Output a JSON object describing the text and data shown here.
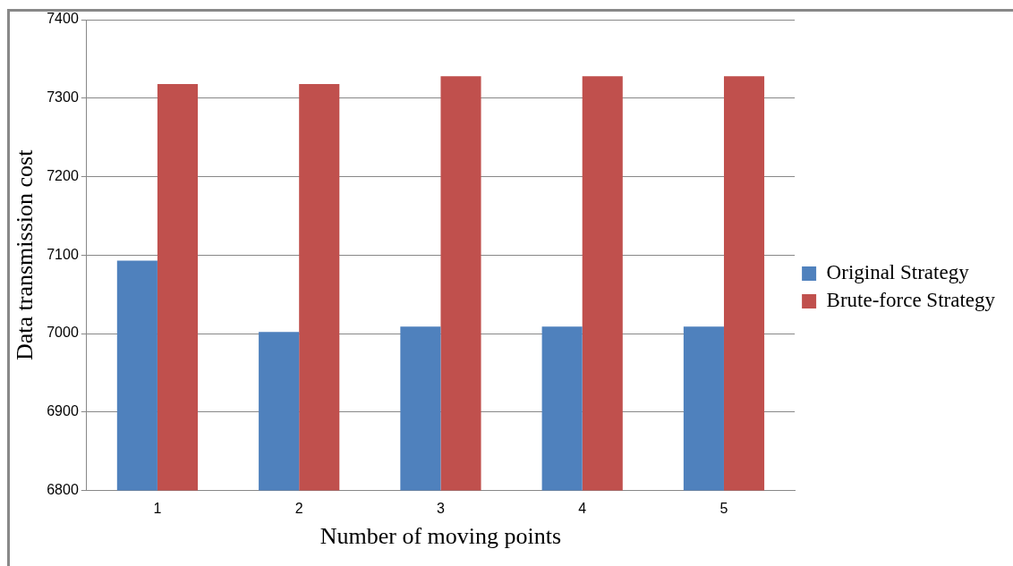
{
  "chart_data": {
    "type": "bar",
    "xlabel": "Number of moving points",
    "ylabel": "Data transmission cost",
    "categories": [
      "1",
      "2",
      "3",
      "4",
      "5"
    ],
    "series": [
      {
        "name": "Original Strategy",
        "color": "#4f81bd",
        "values": [
          7093,
          7002,
          7009,
          7009,
          7009
        ]
      },
      {
        "name": "Brute-force Strategy",
        "color": "#c0504d",
        "values": [
          7318,
          7318,
          7328,
          7328,
          7328
        ]
      }
    ],
    "ylim": [
      6800,
      7400
    ],
    "yticks": [
      6800,
      6900,
      7000,
      7100,
      7200,
      7300,
      7400
    ],
    "grid": "y",
    "legend": "right"
  }
}
